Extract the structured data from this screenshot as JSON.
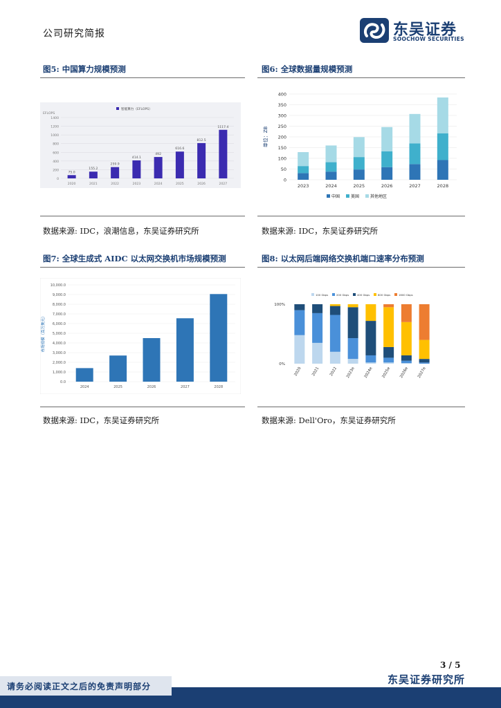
{
  "header": {
    "section": "公司研究简报",
    "logo_cn": "东吴证券",
    "logo_en": "SOOCHOW SECURITIES"
  },
  "figures": [
    {
      "title": "图5:  中国算力规模预测",
      "source": "数据来源:  IDC，浪潮信息，东吴证券研究所"
    },
    {
      "title": "图6:  全球数据量规模预测",
      "source": "数据来源:  IDC，东吴证券研究所"
    },
    {
      "title": "图7:  全球生成式 AIDC 以太网交换机市场规模预测",
      "source": "数据来源:  IDC，东吴证券研究所"
    },
    {
      "title": "图8:  以太网后端网络交换机端口速率分布预测",
      "source": "数据来源:  Dell'Oro，东吴证券研究所"
    }
  ],
  "chart_data": [
    {
      "type": "bar",
      "title": "",
      "legend": [
        "智能算力（EFLOPS）"
      ],
      "ylabel": "EFLOPS",
      "categories": [
        "2020",
        "2021",
        "2022",
        "2023",
        "2024",
        "2025",
        "2026",
        "2027"
      ],
      "values": [
        75.0,
        155.2,
        259.9,
        414.1,
        492.0,
        616.6,
        812.5,
        1117.4
      ],
      "value_labels": [
        "75.0",
        "155.2",
        "259.9",
        "414.1",
        "492",
        "616.6",
        "812.5",
        "1117.4"
      ],
      "ylim": [
        0,
        1400
      ],
      "yticks": [
        "0",
        "200",
        "400",
        "600",
        "800",
        "1000",
        "1200",
        "1400"
      ],
      "color": "#3b2bb0"
    },
    {
      "type": "bar",
      "stacked": true,
      "ylabel": "单位：ZB",
      "categories": [
        "2023",
        "2024",
        "2025",
        "2026",
        "2027",
        "2028"
      ],
      "series": [
        {
          "name": "中国",
          "values": [
            31,
            38,
            48,
            59,
            73,
            92
          ],
          "color": "#2e75b6"
        },
        {
          "name": "美国",
          "values": [
            33,
            44,
            58,
            74,
            97,
            125
          ],
          "color": "#3fb0cc"
        },
        {
          "name": "其他地区",
          "values": [
            65,
            78,
            93,
            113,
            137,
            167
          ],
          "color": "#a6dae6"
        }
      ],
      "ylim": [
        0,
        400
      ],
      "yticks": [
        "0",
        "50",
        "100",
        "150",
        "200",
        "250",
        "300",
        "350",
        "400"
      ]
    },
    {
      "type": "bar",
      "ylabel": "市场规模（百万美元）",
      "categories": [
        "2024",
        "2025",
        "2026",
        "2027",
        "2028"
      ],
      "values": [
        1400,
        2700,
        4500,
        6550,
        9050
      ],
      "ylim": [
        0,
        10000
      ],
      "yticks": [
        "0.0",
        "1,000.0",
        "2,000.0",
        "3,000.0",
        "4,000.0",
        "5,000.0",
        "6,000.0",
        "7,000.0",
        "8,000.0",
        "9,000.0",
        "10,000.0"
      ],
      "color": "#2e75b6"
    },
    {
      "type": "bar",
      "stacked": true,
      "percent": true,
      "categories": [
        "2020",
        "2021",
        "2022",
        "2023e",
        "2024e",
        "2025e",
        "2026e",
        "2027e"
      ],
      "series": [
        {
          "name": "100 Gbps",
          "values": [
            48,
            35,
            20,
            8,
            2,
            2,
            1,
            0
          ],
          "color": "#bdd7ee"
        },
        {
          "name": "200 Gbps",
          "values": [
            42,
            50,
            62,
            35,
            12,
            8,
            4,
            2
          ],
          "color": "#4a90d9"
        },
        {
          "name": "400 Gbps",
          "values": [
            10,
            15,
            15,
            52,
            58,
            18,
            9,
            6
          ],
          "color": "#1f4e79"
        },
        {
          "name": "800 Gbps",
          "values": [
            0,
            0,
            3,
            5,
            28,
            67,
            56,
            32
          ],
          "color": "#ffc000"
        },
        {
          "name": "1600 Gbps",
          "values": [
            0,
            0,
            0,
            0,
            0,
            5,
            30,
            60
          ],
          "color": "#ed7d31"
        }
      ],
      "yticks": [
        "0%",
        "100%"
      ]
    }
  ],
  "footer": {
    "page": "3 / 5",
    "org": "东吴证券研究所",
    "disclaimer": "请务必阅读正文之后的免责声明部分"
  }
}
